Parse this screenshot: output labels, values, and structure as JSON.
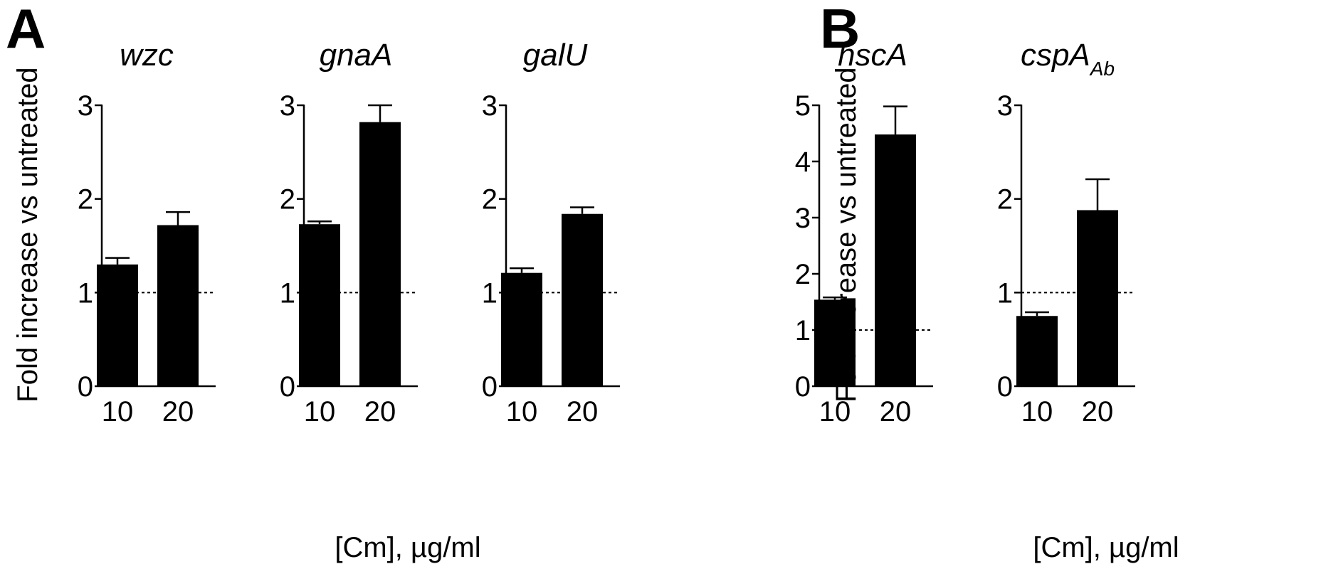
{
  "panels": [
    {
      "letter": "A",
      "ylabel": "Fold increase vs untreated",
      "xlabel": "[Cm], µg/ml"
    },
    {
      "letter": "B",
      "ylabel": "Fold increase vs untreated",
      "xlabel": "[Cm], µg/ml"
    }
  ],
  "chart_data": [
    {
      "type": "bar",
      "panel": "A",
      "title": "wzc",
      "categories": [
        "10",
        "20"
      ],
      "values": [
        1.3,
        1.72
      ],
      "errors": [
        0.07,
        0.14
      ],
      "ylim": [
        0,
        3
      ],
      "yticks": [
        0,
        1,
        2,
        3
      ],
      "reference_line": 1
    },
    {
      "type": "bar",
      "panel": "A",
      "title": "gnaA",
      "categories": [
        "10",
        "20"
      ],
      "values": [
        1.73,
        2.82
      ],
      "errors": [
        0.03,
        0.18
      ],
      "ylim": [
        0,
        3
      ],
      "yticks": [
        0,
        1,
        2,
        3
      ],
      "reference_line": 1
    },
    {
      "type": "bar",
      "panel": "A",
      "title": "galU",
      "categories": [
        "10",
        "20"
      ],
      "values": [
        1.21,
        1.84
      ],
      "errors": [
        0.05,
        0.07
      ],
      "ylim": [
        0,
        3
      ],
      "yticks": [
        0,
        1,
        2,
        3
      ],
      "reference_line": 1
    },
    {
      "type": "bar",
      "panel": "B",
      "title": "hscA",
      "categories": [
        "10",
        "20"
      ],
      "values": [
        1.54,
        4.48
      ],
      "errors": [
        0.04,
        0.5
      ],
      "ylim": [
        0,
        5
      ],
      "yticks": [
        0,
        1,
        2,
        3,
        4,
        5
      ],
      "reference_line": 1
    },
    {
      "type": "bar",
      "panel": "B",
      "title": "cspA",
      "title_sub": "Ab",
      "categories": [
        "10",
        "20"
      ],
      "values": [
        0.75,
        1.88
      ],
      "errors": [
        0.04,
        0.33
      ],
      "ylim": [
        0,
        3
      ],
      "yticks": [
        0,
        1,
        2,
        3
      ],
      "reference_line": 1
    }
  ]
}
